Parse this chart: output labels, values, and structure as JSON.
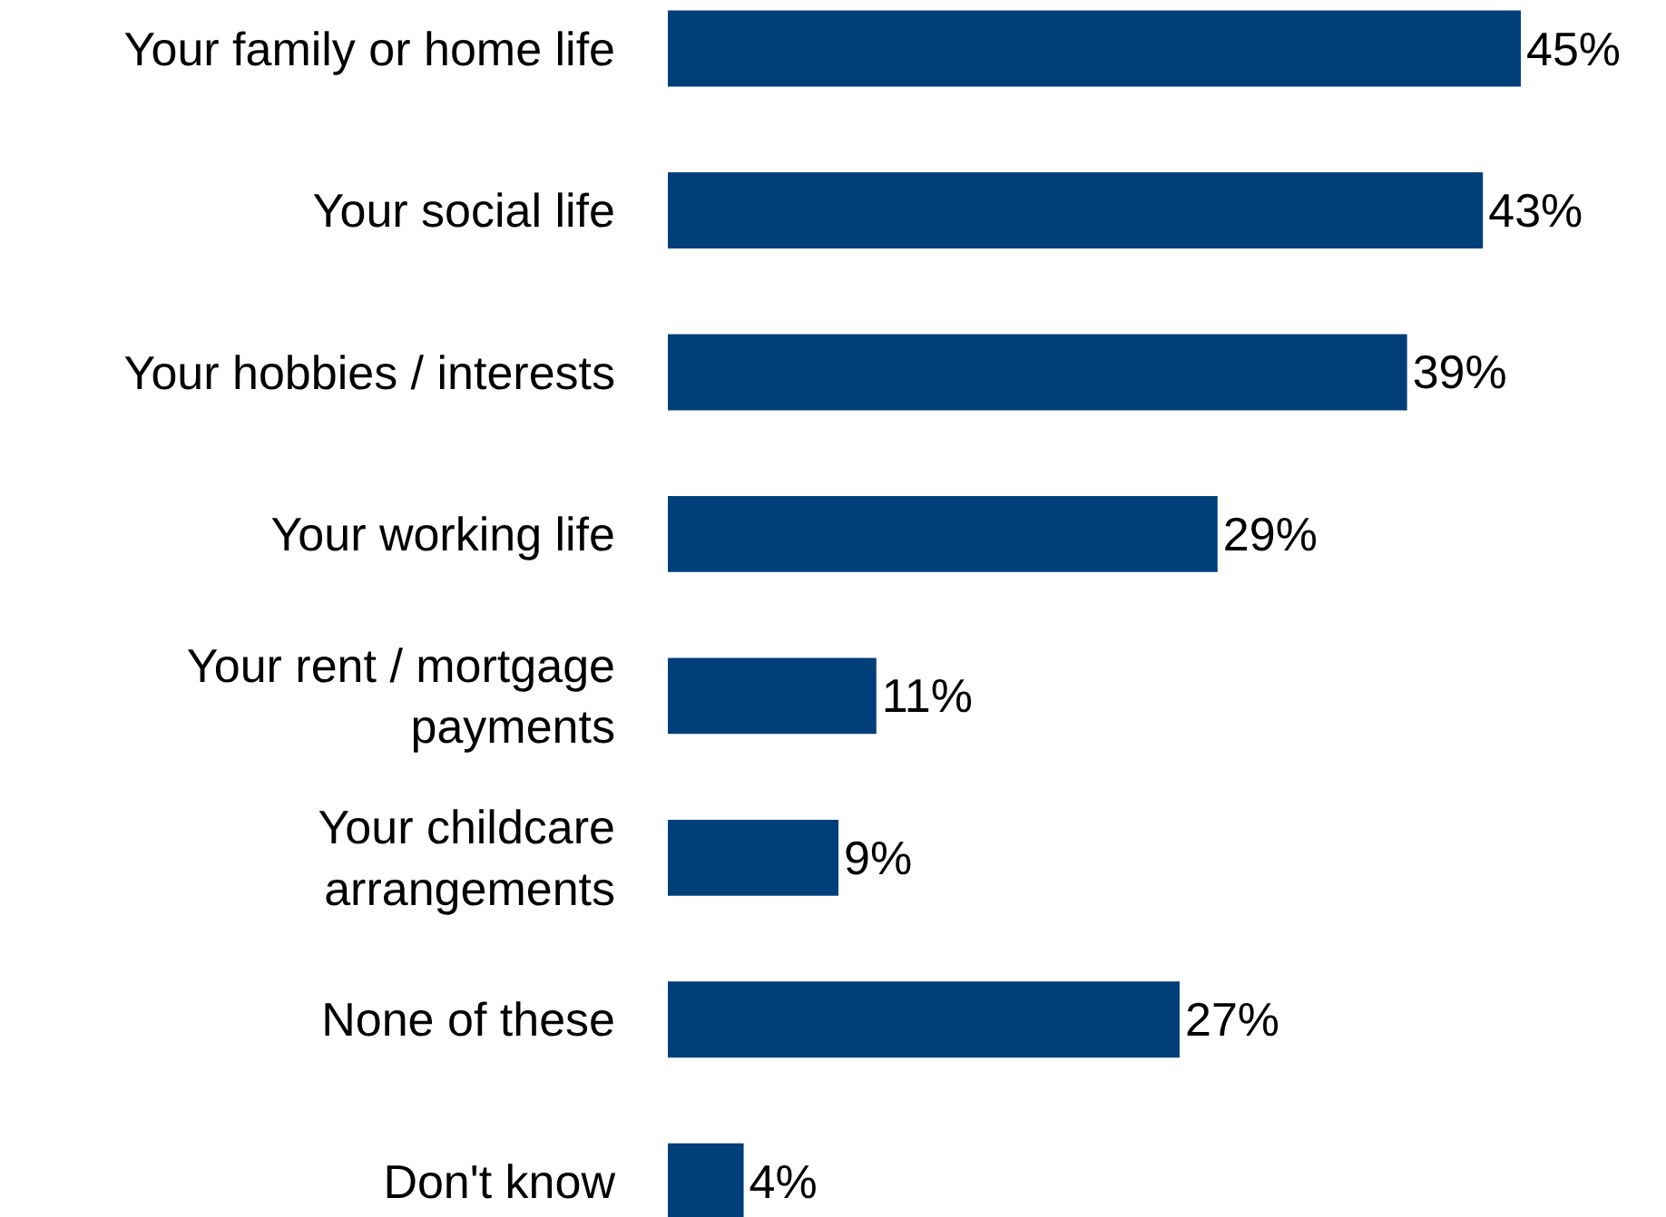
{
  "chart_data": {
    "type": "bar",
    "orientation": "horizontal",
    "categories": [
      "Your family or home life",
      "Your social life",
      "Your hobbies / interests",
      "Your working life",
      "Your rent / mortgage\npayments",
      "Your childcare\narrangements",
      "None of these",
      "Don't know"
    ],
    "values": [
      45,
      43,
      39,
      29,
      11,
      9,
      27,
      4
    ],
    "value_labels": [
      "45%",
      "43%",
      "39%",
      "29%",
      "11%",
      "9%",
      "27%",
      "4%"
    ],
    "color": "#003f7a"
  }
}
